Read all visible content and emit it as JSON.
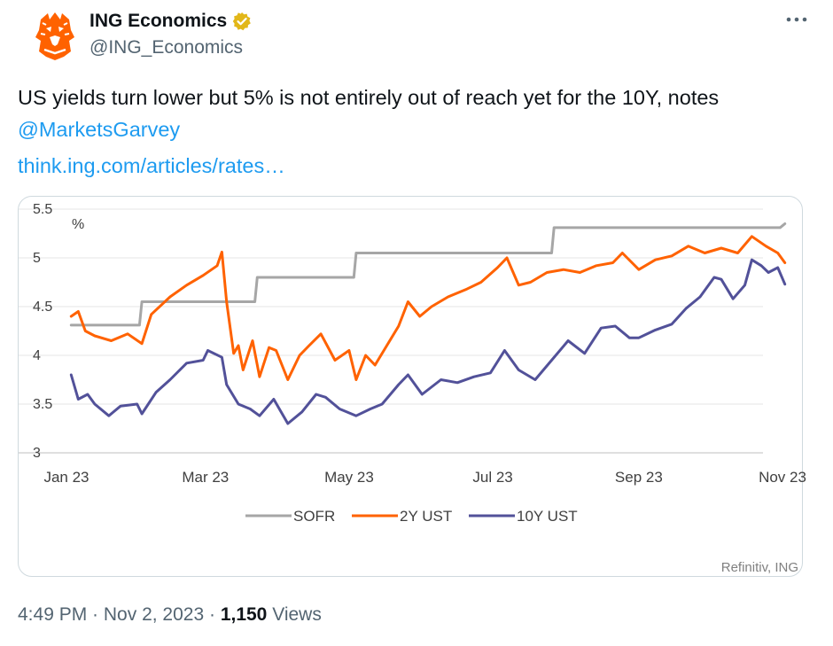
{
  "author": {
    "display_name": "ING Economics",
    "handle": "@ING_Economics",
    "avatar_icon": "lion-logo-icon",
    "verified_badge": "gold-verified-badge-icon"
  },
  "tweet": {
    "text_main": "US yields turn lower but 5% is not entirely out of reach yet for the 10Y, notes ",
    "mention": "@MarketsGarvey",
    "link": "think.ing.com/articles/rates…"
  },
  "meta": {
    "time": "4:49 PM",
    "sep1": " · ",
    "date": "Nov 2, 2023",
    "sep2": " · ",
    "views_count": "1,150",
    "views_label": " Views"
  },
  "more_icon": "more-horizontal-icon",
  "chart_data": {
    "type": "line",
    "ylabel": "%",
    "source": "Refinitiv, ING",
    "ylim": [
      3,
      5.5
    ],
    "yticks": [
      "3",
      "3.5",
      "4",
      "4.5",
      "5",
      "5.5"
    ],
    "xticks": [
      "Jan 23",
      "Mar 23",
      "May 23",
      "Jul 23",
      "Sep 23",
      "Nov 23"
    ],
    "xtick_dates": [
      "2023-01-01",
      "2023-03-01",
      "2023-05-01",
      "2023-07-01",
      "2023-09-01",
      "2023-11-01"
    ],
    "grid": true,
    "legend_position": "bottom-center",
    "colors": {
      "sofr": "#a6a6a6",
      "ust2y": "#ff6200",
      "ust10y": "#525199"
    },
    "series": [
      {
        "name": "SOFR",
        "color": "#a6a6a6",
        "points": [
          [
            "2023-01-03",
            4.31
          ],
          [
            "2023-02-01",
            4.31
          ],
          [
            "2023-02-02",
            4.55
          ],
          [
            "2023-03-22",
            4.55
          ],
          [
            "2023-03-23",
            4.8
          ],
          [
            "2023-05-03",
            4.8
          ],
          [
            "2023-05-04",
            5.05
          ],
          [
            "2023-07-26",
            5.05
          ],
          [
            "2023-07-27",
            5.31
          ],
          [
            "2023-10-31",
            5.31
          ],
          [
            "2023-11-02",
            5.35
          ]
        ]
      },
      {
        "name": "2Y UST",
        "color": "#ff6200",
        "points": [
          [
            "2023-01-03",
            4.4
          ],
          [
            "2023-01-06",
            4.45
          ],
          [
            "2023-01-09",
            4.25
          ],
          [
            "2023-01-13",
            4.2
          ],
          [
            "2023-01-20",
            4.15
          ],
          [
            "2023-01-27",
            4.22
          ],
          [
            "2023-02-02",
            4.12
          ],
          [
            "2023-02-06",
            4.42
          ],
          [
            "2023-02-14",
            4.6
          ],
          [
            "2023-02-21",
            4.72
          ],
          [
            "2023-02-28",
            4.82
          ],
          [
            "2023-03-06",
            4.92
          ],
          [
            "2023-03-08",
            5.06
          ],
          [
            "2023-03-10",
            4.55
          ],
          [
            "2023-03-13",
            4.02
          ],
          [
            "2023-03-15",
            4.1
          ],
          [
            "2023-03-17",
            3.85
          ],
          [
            "2023-03-21",
            4.15
          ],
          [
            "2023-03-24",
            3.78
          ],
          [
            "2023-03-28",
            4.08
          ],
          [
            "2023-03-31",
            4.05
          ],
          [
            "2023-04-05",
            3.75
          ],
          [
            "2023-04-10",
            4.0
          ],
          [
            "2023-04-14",
            4.1
          ],
          [
            "2023-04-19",
            4.22
          ],
          [
            "2023-04-25",
            3.95
          ],
          [
            "2023-05-01",
            4.05
          ],
          [
            "2023-05-04",
            3.75
          ],
          [
            "2023-05-08",
            4.0
          ],
          [
            "2023-05-12",
            3.9
          ],
          [
            "2023-05-17",
            4.1
          ],
          [
            "2023-05-22",
            4.3
          ],
          [
            "2023-05-26",
            4.55
          ],
          [
            "2023-05-31",
            4.4
          ],
          [
            "2023-06-05",
            4.5
          ],
          [
            "2023-06-12",
            4.6
          ],
          [
            "2023-06-20",
            4.68
          ],
          [
            "2023-06-26",
            4.75
          ],
          [
            "2023-07-03",
            4.9
          ],
          [
            "2023-07-07",
            5.0
          ],
          [
            "2023-07-12",
            4.72
          ],
          [
            "2023-07-17",
            4.75
          ],
          [
            "2023-07-24",
            4.85
          ],
          [
            "2023-07-31",
            4.88
          ],
          [
            "2023-08-07",
            4.85
          ],
          [
            "2023-08-14",
            4.92
          ],
          [
            "2023-08-21",
            4.95
          ],
          [
            "2023-08-25",
            5.05
          ],
          [
            "2023-09-01",
            4.88
          ],
          [
            "2023-09-08",
            4.98
          ],
          [
            "2023-09-15",
            5.02
          ],
          [
            "2023-09-22",
            5.12
          ],
          [
            "2023-09-29",
            5.05
          ],
          [
            "2023-10-06",
            5.1
          ],
          [
            "2023-10-13",
            5.05
          ],
          [
            "2023-10-19",
            5.22
          ],
          [
            "2023-10-25",
            5.12
          ],
          [
            "2023-10-30",
            5.05
          ],
          [
            "2023-11-02",
            4.95
          ]
        ]
      },
      {
        "name": "10Y UST",
        "color": "#525199",
        "points": [
          [
            "2023-01-03",
            3.8
          ],
          [
            "2023-01-06",
            3.55
          ],
          [
            "2023-01-10",
            3.6
          ],
          [
            "2023-01-13",
            3.5
          ],
          [
            "2023-01-19",
            3.38
          ],
          [
            "2023-01-24",
            3.48
          ],
          [
            "2023-01-31",
            3.5
          ],
          [
            "2023-02-02",
            3.4
          ],
          [
            "2023-02-08",
            3.62
          ],
          [
            "2023-02-14",
            3.75
          ],
          [
            "2023-02-21",
            3.92
          ],
          [
            "2023-02-28",
            3.95
          ],
          [
            "2023-03-02",
            4.05
          ],
          [
            "2023-03-08",
            3.98
          ],
          [
            "2023-03-10",
            3.7
          ],
          [
            "2023-03-15",
            3.5
          ],
          [
            "2023-03-20",
            3.45
          ],
          [
            "2023-03-24",
            3.38
          ],
          [
            "2023-03-30",
            3.55
          ],
          [
            "2023-04-05",
            3.3
          ],
          [
            "2023-04-11",
            3.42
          ],
          [
            "2023-04-17",
            3.6
          ],
          [
            "2023-04-21",
            3.57
          ],
          [
            "2023-04-27",
            3.45
          ],
          [
            "2023-05-04",
            3.38
          ],
          [
            "2023-05-10",
            3.45
          ],
          [
            "2023-05-15",
            3.5
          ],
          [
            "2023-05-22",
            3.7
          ],
          [
            "2023-05-26",
            3.8
          ],
          [
            "2023-06-01",
            3.6
          ],
          [
            "2023-06-09",
            3.75
          ],
          [
            "2023-06-16",
            3.72
          ],
          [
            "2023-06-23",
            3.78
          ],
          [
            "2023-06-30",
            3.82
          ],
          [
            "2023-07-06",
            4.05
          ],
          [
            "2023-07-12",
            3.85
          ],
          [
            "2023-07-19",
            3.75
          ],
          [
            "2023-07-26",
            3.95
          ],
          [
            "2023-08-02",
            4.15
          ],
          [
            "2023-08-09",
            4.02
          ],
          [
            "2023-08-16",
            4.28
          ],
          [
            "2023-08-22",
            4.3
          ],
          [
            "2023-08-28",
            4.18
          ],
          [
            "2023-09-01",
            4.18
          ],
          [
            "2023-09-08",
            4.26
          ],
          [
            "2023-09-15",
            4.32
          ],
          [
            "2023-09-21",
            4.48
          ],
          [
            "2023-09-27",
            4.6
          ],
          [
            "2023-10-03",
            4.8
          ],
          [
            "2023-10-06",
            4.78
          ],
          [
            "2023-10-11",
            4.58
          ],
          [
            "2023-10-16",
            4.72
          ],
          [
            "2023-10-19",
            4.98
          ],
          [
            "2023-10-23",
            4.92
          ],
          [
            "2023-10-26",
            4.85
          ],
          [
            "2023-10-30",
            4.9
          ],
          [
            "2023-11-02",
            4.73
          ]
        ]
      }
    ]
  }
}
